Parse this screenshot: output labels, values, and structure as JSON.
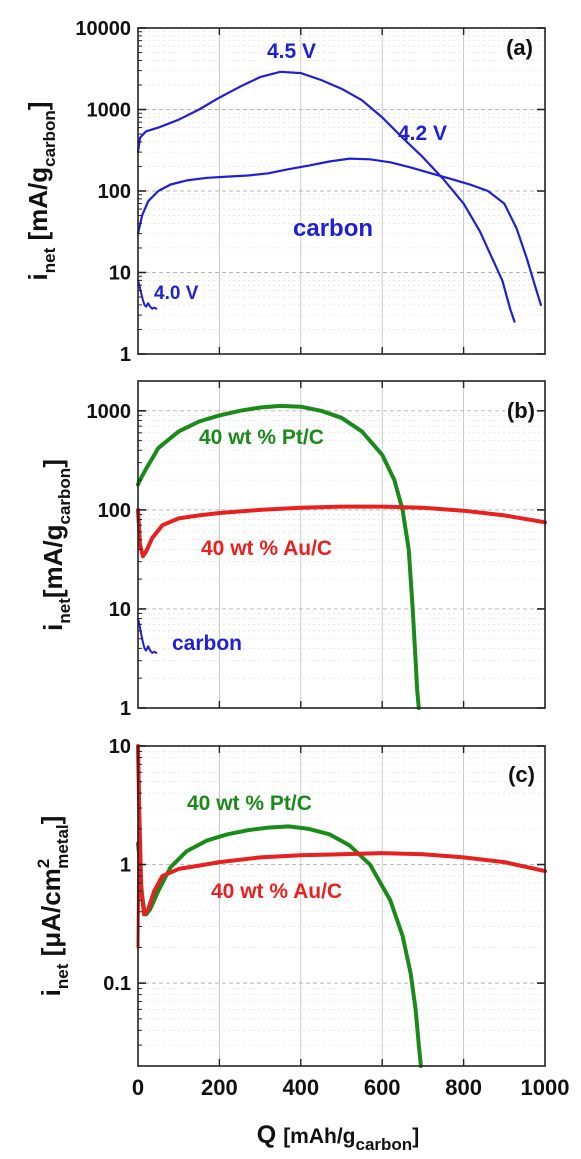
{
  "chart_data": [
    {
      "panel": "a",
      "type": "line",
      "yscale": "log",
      "xlim": [
        0,
        1000
      ],
      "ylim": [
        1,
        10000
      ],
      "yticks": [
        "1",
        "10",
        "100",
        "1000",
        "10000"
      ],
      "ylabel_main": "i",
      "ylabel_sub": "net",
      "ylabel_unit": " [mA/g",
      "ylabel_unit_sub": "carbon",
      "ylabel_close": "]",
      "panel_label": "(a)",
      "annotations": [
        "4.5 V",
        "4.2 V",
        "carbon",
        "4.0 V"
      ],
      "series": [
        {
          "color": "#1f1fd6",
          "width": 2.2,
          "x": [
            0,
            5,
            20,
            50,
            100,
            150,
            200,
            250,
            300,
            350,
            400,
            450,
            500,
            550,
            600,
            650,
            700,
            750,
            800,
            840,
            870,
            895,
            915,
            925
          ],
          "y": [
            300,
            450,
            540,
            600,
            750,
            1000,
            1400,
            1900,
            2500,
            2900,
            2800,
            2300,
            1800,
            1300,
            800,
            450,
            260,
            140,
            70,
            32,
            15,
            8,
            3.5,
            2.5
          ]
        },
        {
          "color": "#1f1fd6",
          "width": 2.2,
          "x": [
            0,
            10,
            25,
            50,
            80,
            120,
            170,
            220,
            270,
            320,
            370,
            420,
            470,
            520,
            570,
            620,
            670,
            720,
            770,
            820,
            860,
            900,
            930,
            955,
            975,
            990
          ],
          "y": [
            30,
            50,
            75,
            100,
            120,
            135,
            145,
            150,
            155,
            165,
            185,
            205,
            230,
            250,
            245,
            225,
            195,
            165,
            140,
            118,
            100,
            70,
            35,
            15,
            7,
            4
          ]
        },
        {
          "color": "#1f1fd6",
          "width": 2.0,
          "x": [
            0,
            4,
            8,
            12,
            16,
            20,
            25,
            30,
            35,
            40,
            45
          ],
          "y": [
            8,
            6.8,
            5.5,
            4.6,
            4.0,
            3.8,
            4.2,
            3.8,
            3.6,
            3.7,
            3.6
          ]
        }
      ]
    },
    {
      "panel": "b",
      "type": "line",
      "yscale": "log",
      "xlim": [
        0,
        1000
      ],
      "ylim": [
        1,
        2000
      ],
      "yticks": [
        "1",
        "10",
        "100",
        "1000"
      ],
      "ylabel_main": "i",
      "ylabel_sub": "net",
      "ylabel_unit": "[mA/g",
      "ylabel_unit_sub": "carbon",
      "ylabel_close": "]",
      "panel_label": "(b)",
      "annotations": [
        "40 wt % Pt/C",
        "40 wt % Au/C",
        "carbon"
      ],
      "series": [
        {
          "color": "#1a8a1a",
          "width": 4,
          "x": [
            0,
            5,
            20,
            50,
            100,
            150,
            200,
            250,
            300,
            350,
            400,
            450,
            500,
            550,
            600,
            630,
            650,
            665,
            675,
            682,
            686,
            690
          ],
          "y": [
            180,
            200,
            260,
            420,
            620,
            780,
            900,
            1000,
            1080,
            1120,
            1100,
            1000,
            850,
            620,
            360,
            200,
            100,
            40,
            10,
            3,
            1.5,
            1
          ]
        },
        {
          "color": "#e82020",
          "width": 4,
          "x": [
            0,
            5,
            12,
            20,
            35,
            60,
            100,
            150,
            200,
            300,
            400,
            500,
            600,
            700,
            800,
            900,
            1000
          ],
          "y": [
            100,
            45,
            34,
            38,
            52,
            70,
            82,
            88,
            93,
            100,
            105,
            108,
            108,
            105,
            98,
            88,
            75
          ]
        },
        {
          "color": "#1f1fd6",
          "width": 2.0,
          "x": [
            0,
            4,
            8,
            12,
            16,
            20,
            25,
            30,
            35,
            40,
            45
          ],
          "y": [
            8,
            6.8,
            5.5,
            4.6,
            4.0,
            3.8,
            4.2,
            3.8,
            3.6,
            3.7,
            3.6
          ]
        }
      ]
    },
    {
      "panel": "c",
      "type": "line",
      "yscale": "log",
      "xlim": [
        0,
        1000
      ],
      "ylim": [
        0.02,
        10
      ],
      "yticks": [
        "0.1",
        "1",
        "10"
      ],
      "xticks": [
        "0",
        "200",
        "400",
        "600",
        "800",
        "1000"
      ],
      "ylabel_main": "i",
      "ylabel_sub": "net",
      "ylabel_unit": " [μA/cm",
      "ylabel_unit_sup": "2",
      "ylabel_unit_sub": "metal",
      "ylabel_close": "]",
      "panel_label": "(c)",
      "xlabel_main": "Q ",
      "xlabel_unit": "[mAh/g",
      "xlabel_unit_sub": "carbon",
      "xlabel_close": "]",
      "annotations": [
        "40 wt % Pt/C",
        "40 wt % Au/C"
      ],
      "series": [
        {
          "color": "#1a8a1a",
          "width": 4,
          "x": [
            0,
            3,
            6,
            10,
            15,
            20,
            30,
            50,
            80,
            120,
            170,
            220,
            270,
            320,
            370,
            420,
            470,
            520,
            570,
            620,
            650,
            670,
            682,
            690,
            695
          ],
          "y": [
            1.5,
            1.2,
            0.8,
            0.55,
            0.42,
            0.38,
            0.42,
            0.6,
            0.95,
            1.3,
            1.6,
            1.8,
            1.95,
            2.05,
            2.1,
            2.0,
            1.8,
            1.45,
            1.0,
            0.5,
            0.25,
            0.12,
            0.06,
            0.03,
            0.02
          ]
        },
        {
          "color": "#e82020",
          "width": 4,
          "x": [
            0,
            3,
            8,
            15,
            25,
            40,
            60,
            100,
            150,
            200,
            300,
            400,
            500,
            600,
            700,
            800,
            900,
            1000
          ],
          "y": [
            10,
            3,
            0.6,
            0.38,
            0.42,
            0.6,
            0.8,
            0.92,
            0.98,
            1.05,
            1.15,
            1.2,
            1.22,
            1.25,
            1.22,
            1.15,
            1.05,
            0.88
          ]
        },
        {
          "color": "#e82020",
          "width": 3,
          "x": [
            0,
            1,
            2,
            3
          ],
          "y": [
            0.2,
            0.5,
            1.5,
            5
          ]
        }
      ]
    }
  ]
}
